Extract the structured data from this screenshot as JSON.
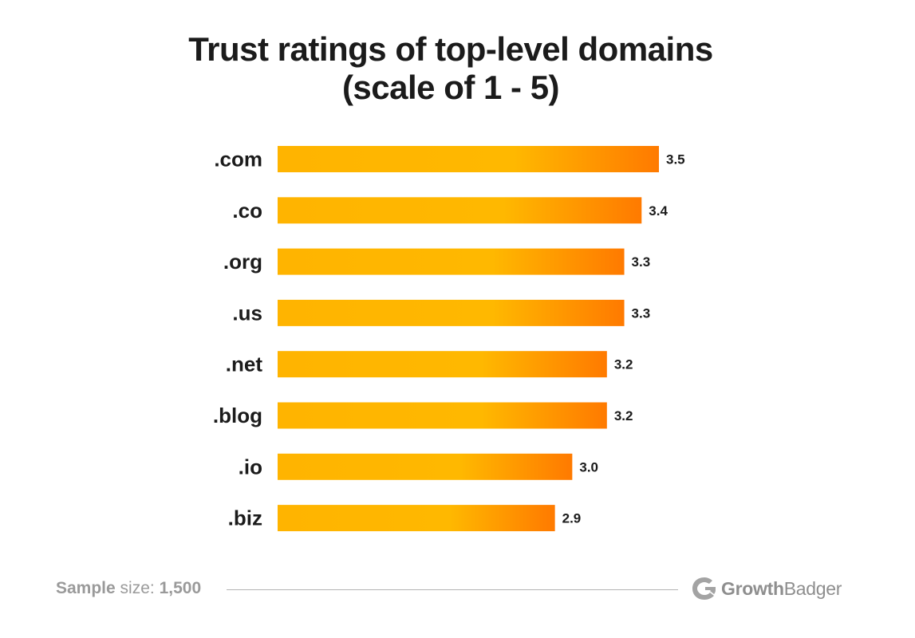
{
  "chart_data": {
    "type": "bar",
    "orientation": "horizontal",
    "title_lines": [
      "Trust ratings of top-level domains",
      "(scale of 1 - 5)"
    ],
    "categories": [
      ".com",
      ".co",
      ".org",
      ".us",
      ".net",
      ".blog",
      ".io",
      ".biz"
    ],
    "values": [
      3.5,
      3.4,
      3.3,
      3.3,
      3.2,
      3.2,
      3.0,
      2.9
    ],
    "value_labels": [
      "3.5",
      "3.4",
      "3.3",
      "3.3",
      "3.2",
      "3.2",
      "3.0",
      "2.9"
    ],
    "xlim": [
      1.3,
      3.5
    ],
    "grid": false,
    "legend": "none",
    "colors": {
      "bar_start": "#ffb400",
      "bar_mid": "#ffb800",
      "bar_end": "#ff7a00",
      "label": "#1b1b1b"
    }
  },
  "footer": {
    "sample_label": "Sample",
    "size_label": "size:",
    "sample_value": "1,500",
    "brand_part1": "Growth",
    "brand_part2": "Badger",
    "brand_icon": "badger-logo-icon"
  }
}
